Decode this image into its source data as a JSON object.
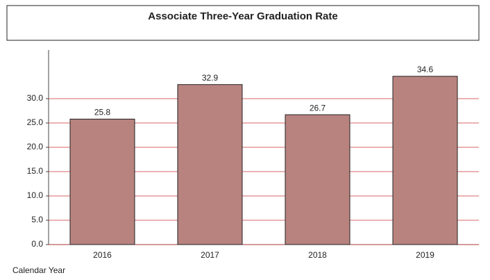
{
  "chart_data": {
    "type": "bar",
    "title": "Associate Three-Year Graduation Rate",
    "x_label": "Calendar Year",
    "categories": [
      "2016",
      "2017",
      "2018",
      "2019"
    ],
    "values": [
      25.8,
      32.9,
      26.7,
      34.6
    ],
    "value_labels": [
      "25.8",
      "32.9",
      "26.7",
      "34.6"
    ],
    "color": "#b8837f",
    "grid_color": "#cc3333",
    "ylim": [
      0,
      40
    ],
    "yticks": [
      {
        "value": 0,
        "label": "0.0"
      },
      {
        "value": 5,
        "label": "5.0"
      },
      {
        "value": 10,
        "label": "10.0"
      },
      {
        "value": 15,
        "label": "15.0"
      },
      {
        "value": 20,
        "label": "20.0"
      },
      {
        "value": 25,
        "label": "25.0"
      },
      {
        "value": 30,
        "label": "30.0"
      }
    ],
    "grid": true
  }
}
